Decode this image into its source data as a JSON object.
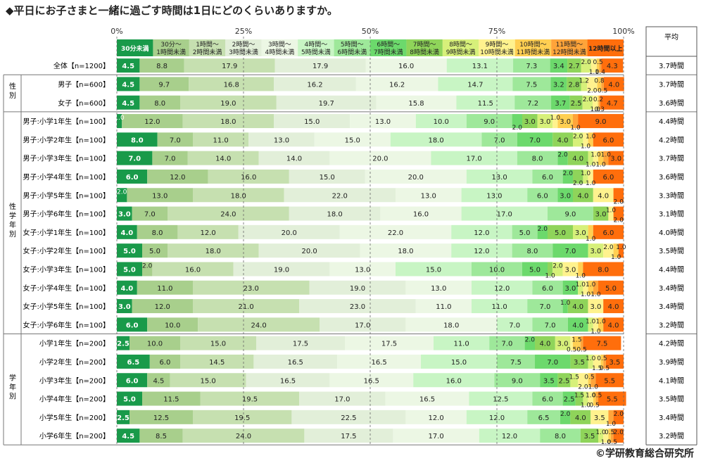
{
  "title": "◆平日にお子さまと一緒に過ごす時間は1日にどのくらいありますか。",
  "copyright": "©学研教育総合研究所",
  "chart_data": {
    "type": "stacked-bar-horizontal",
    "axis_ticks": [
      "0%",
      "25%",
      "50%",
      "75%",
      "100%"
    ],
    "xlim": [
      0,
      100
    ],
    "avg_header": "平均",
    "categories": [
      {
        "line1": "30分未満",
        "line2": "",
        "color": "#199a4a"
      },
      {
        "line1": "30分～",
        "line2": "1時間未満",
        "color": "#a8cf8c"
      },
      {
        "line1": "1時間～",
        "line2": "2時間未満",
        "color": "#c6e0b0"
      },
      {
        "line1": "2時間～",
        "line2": "3時間未満",
        "color": "#e2efd9"
      },
      {
        "line1": "3時間～",
        "line2": "4時間未満",
        "color": "#ecf7e4"
      },
      {
        "line1": "4時間～",
        "line2": "5時間未満",
        "color": "#c8f5c4"
      },
      {
        "line1": "5時間～",
        "line2": "6時間未満",
        "color": "#9ee89a"
      },
      {
        "line1": "6時間～",
        "line2": "7時間未満",
        "color": "#6cd96c"
      },
      {
        "line1": "7時間～",
        "line2": "8時間未満",
        "color": "#8fd45a"
      },
      {
        "line1": "8時間～",
        "line2": "9時間未満",
        "color": "#d7f07a"
      },
      {
        "line1": "9時間～",
        "line2": "10時間未満",
        "color": "#fff28e"
      },
      {
        "line1": "10時間～",
        "line2": "11時間未満",
        "color": "#ffcf52"
      },
      {
        "line1": "11時間～",
        "line2": "12時間未満",
        "color": "#ffa43a"
      },
      {
        "line1": "12時間以上",
        "line2": "",
        "color": "#ff6e0c"
      }
    ],
    "groups": [
      {
        "label": "",
        "rows": [
          {
            "label": "全体【n=1200】",
            "values": [
              4.5,
              8.8,
              17.9,
              17.9,
              16.0,
              13.1,
              7.3,
              3.4,
              2.7,
              2.0,
              1.1,
              0.5,
              0.4,
              4.3
            ],
            "average": "3.7時間"
          }
        ]
      },
      {
        "label": "性別",
        "rows": [
          {
            "label": "男子【n=600】",
            "values": [
              4.5,
              9.7,
              16.8,
              16.2,
              16.2,
              14.7,
              7.5,
              3.2,
              2.8,
              1.2,
              2.0,
              0.8,
              0.5,
              4.0
            ],
            "average": "3.7時間"
          },
          {
            "label": "女子【n=600】",
            "values": [
              4.5,
              8.0,
              19.0,
              19.7,
              15.8,
              11.5,
              7.2,
              3.7,
              2.5,
              2.0,
              1.0,
              0.2,
              0.3,
              4.7
            ],
            "average": "3.6時間"
          }
        ]
      },
      {
        "label": "性学年別",
        "rows": [
          {
            "label": "男子:小学1年生【n=100】",
            "values": [
              1.0,
              12.0,
              18.0,
              15.0,
              13.0,
              10.0,
              9.0,
              2.0,
              3.0,
              3.0,
              1.0,
              3.0,
              1.0,
              9.0
            ],
            "average": "4.4時間"
          },
          {
            "label": "男子:小学2年生【n=100】",
            "values": [
              8.0,
              7.0,
              11.0,
              13.0,
              15.0,
              18.0,
              7.0,
              7.0,
              4.0,
              2.0,
              1.0,
              1.0,
              0.0,
              6.0
            ],
            "average": "4.2時間"
          },
          {
            "label": "男子:小学3年生【n=100】",
            "values": [
              7.0,
              7.0,
              14.0,
              14.0,
              20.0,
              17.0,
              8.0,
              2.0,
              4.0,
              1.0,
              1.0,
              1.0,
              1.0,
              3.0
            ],
            "average": "3.7時間"
          },
          {
            "label": "男子:小学4年生【n=100】",
            "values": [
              6.0,
              12.0,
              16.0,
              15.0,
              20.0,
              13.0,
              6.0,
              2.0,
              2.0,
              1.0,
              1.0,
              0.0,
              0.0,
              6.0
            ],
            "average": "3.6時間"
          },
          {
            "label": "男子:小学5年生【n=100】",
            "values": [
              2.0,
              13.0,
              18.0,
              22.0,
              13.0,
              13.0,
              6.0,
              3.0,
              4.0,
              0.0,
              4.0,
              0.0,
              0.0,
              2.0
            ],
            "average": "3.3時間"
          },
          {
            "label": "男子:小学6年生【n=100】",
            "values": [
              3.0,
              7.0,
              24.0,
              18.0,
              16.0,
              17.0,
              9.0,
              0.0,
              3.0,
              0.0,
              1.0,
              0.0,
              0.0,
              2.0
            ],
            "average": "3.1時間"
          },
          {
            "label": "女子:小学1年生【n=100】",
            "values": [
              4.0,
              8.0,
              12.0,
              20.0,
              22.0,
              12.0,
              5.0,
              2.0,
              5.0,
              3.0,
              0.0,
              1.0,
              0.0,
              6.0
            ],
            "average": "4.0時間"
          },
          {
            "label": "女子:小学2年生【n=100】",
            "values": [
              5.0,
              5.0,
              18.0,
              20.0,
              18.0,
              12.0,
              8.0,
              7.0,
              0.0,
              3.0,
              2.0,
              1.0,
              0.0,
              1.0
            ],
            "average": "3.5時間"
          },
          {
            "label": "女子:小学3年生【n=100】",
            "values": [
              5.0,
              2.0,
              16.0,
              19.0,
              13.0,
              15.0,
              10.0,
              5.0,
              1.0,
              2.0,
              3.0,
              1.0,
              0.0,
              8.0
            ],
            "average": "4.4時間"
          },
          {
            "label": "女子:小学4年生【n=100】",
            "values": [
              4.0,
              11.0,
              23.0,
              19.0,
              13.0,
              12.0,
              6.0,
              3.0,
              0.0,
              1.0,
              1.0,
              1.0,
              1.0,
              5.0
            ],
            "average": "3.4時間"
          },
          {
            "label": "女子:小学5年生【n=100】",
            "values": [
              3.0,
              12.0,
              21.0,
              23.0,
              11.0,
              11.0,
              7.0,
              1.0,
              4.0,
              0.0,
              3.0,
              0.0,
              0.0,
              4.0
            ],
            "average": "3.4時間"
          },
          {
            "label": "女子:小学6年生【n=100】",
            "values": [
              6.0,
              10.0,
              24.0,
              17.0,
              18.0,
              7.0,
              7.0,
              4.0,
              0.0,
              1.0,
              1.0,
              1.0,
              0.0,
              4.0
            ],
            "average": "3.2時間"
          }
        ]
      },
      {
        "label": "学年別",
        "rows": [
          {
            "label": "小学1年生【n=200】",
            "values": [
              2.5,
              10.0,
              15.0,
              17.5,
              17.5,
              11.0,
              7.0,
              2.0,
              4.0,
              3.0,
              0.5,
              1.5,
              0.5,
              7.5
            ],
            "average": "4.2時間"
          },
          {
            "label": "小学2年生【n=200】",
            "values": [
              6.5,
              6.0,
              14.5,
              16.5,
              16.5,
              15.0,
              7.5,
              7.0,
              3.5,
              1.0,
              1.5,
              0.5,
              0.5,
              3.5
            ],
            "average": "3.9時間"
          },
          {
            "label": "小学3年生【n=200】",
            "values": [
              6.0,
              4.5,
              15.0,
              16.5,
              16.5,
              16.0,
              9.0,
              3.5,
              2.5,
              1.5,
              2.0,
              0.5,
              1.0,
              5.5
            ],
            "average": "4.1時間"
          },
          {
            "label": "小学4年生【n=200】",
            "values": [
              5.0,
              11.5,
              19.5,
              17.0,
              16.5,
              12.5,
              6.0,
              2.5,
              1.5,
              1.0,
              1.0,
              0.5,
              0.5,
              5.5
            ],
            "average": "3.5時間"
          },
          {
            "label": "小学5年生【n=200】",
            "values": [
              2.5,
              12.5,
              19.5,
              22.5,
              12.0,
              12.0,
              6.5,
              2.0,
              4.0,
              0.0,
              3.5,
              0.0,
              1.0,
              2.0
            ],
            "average": "3.4時間"
          },
          {
            "label": "小学6年生【n=200】",
            "values": [
              4.5,
              8.5,
              24.0,
              17.5,
              17.0,
              12.0,
              8.0,
              0.0,
              3.5,
              1.0,
              1.0,
              0.5,
              0.5,
              2.0
            ],
            "average": "3.2時間"
          }
        ]
      }
    ]
  }
}
